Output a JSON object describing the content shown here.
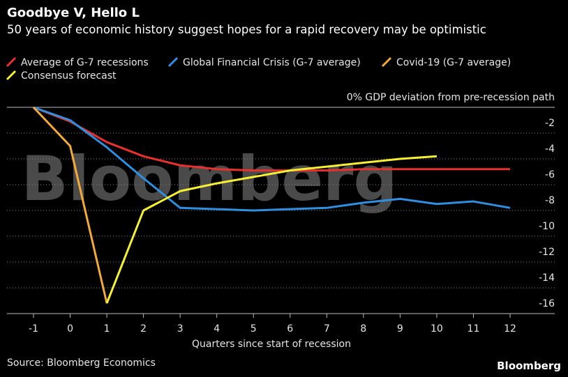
{
  "chart_data": {
    "type": "line",
    "title": "Goodbye V, Hello L",
    "subtitle": "50 years of economic history suggest hopes for a rapid recovery may be optimistic",
    "x_label": "Quarters since start of recession",
    "source": "Source: Bloomberg Economics",
    "watermark": "Bloomberg",
    "logo": "Bloomberg",
    "x": [
      -1,
      0,
      1,
      2,
      3,
      4,
      5,
      6,
      7,
      8,
      9,
      10,
      11,
      12
    ],
    "xlim": [
      -1,
      12
    ],
    "xticks": [
      -1,
      0,
      1,
      2,
      3,
      4,
      5,
      6,
      7,
      8,
      9,
      10,
      11,
      12
    ],
    "ylim": [
      -16,
      0
    ],
    "yticks": [
      {
        "value": 0,
        "label": "0% GDP deviation from pre-recession path"
      },
      -2,
      -4,
      -6,
      -8,
      -10,
      -12,
      -14,
      -16
    ],
    "grid": true,
    "series": [
      {
        "name": "Average of G-7 recessions",
        "color": "#e8312f",
        "values": [
          0,
          -1.1,
          -2.7,
          -3.8,
          -4.5,
          -4.8,
          -4.9,
          -4.9,
          -4.9,
          -4.8,
          -4.8,
          -4.8,
          -4.8,
          -4.8
        ]
      },
      {
        "name": "Global Financial Crisis (G-7 average)",
        "color": "#2f8fe0",
        "values": [
          0,
          -1.0,
          -3.1,
          -5.5,
          -7.8,
          -7.9,
          -8.0,
          -7.9,
          -7.8,
          -7.4,
          -7.1,
          -7.5,
          -7.3,
          -7.8
        ]
      },
      {
        "name": "Covid-19 (G-7 average)",
        "color": "#f5a93a",
        "values": [
          0,
          -3.0,
          -15.2,
          null,
          null,
          null,
          null,
          null,
          null,
          null,
          null,
          null,
          null,
          null
        ]
      },
      {
        "name": "Consensus forecast",
        "color": "#f6f035",
        "values": [
          null,
          null,
          -15.2,
          -8.0,
          -6.5,
          -5.9,
          -5.4,
          -4.9,
          -4.6,
          -4.3,
          -4.0,
          -3.8,
          null,
          null
        ]
      }
    ]
  }
}
